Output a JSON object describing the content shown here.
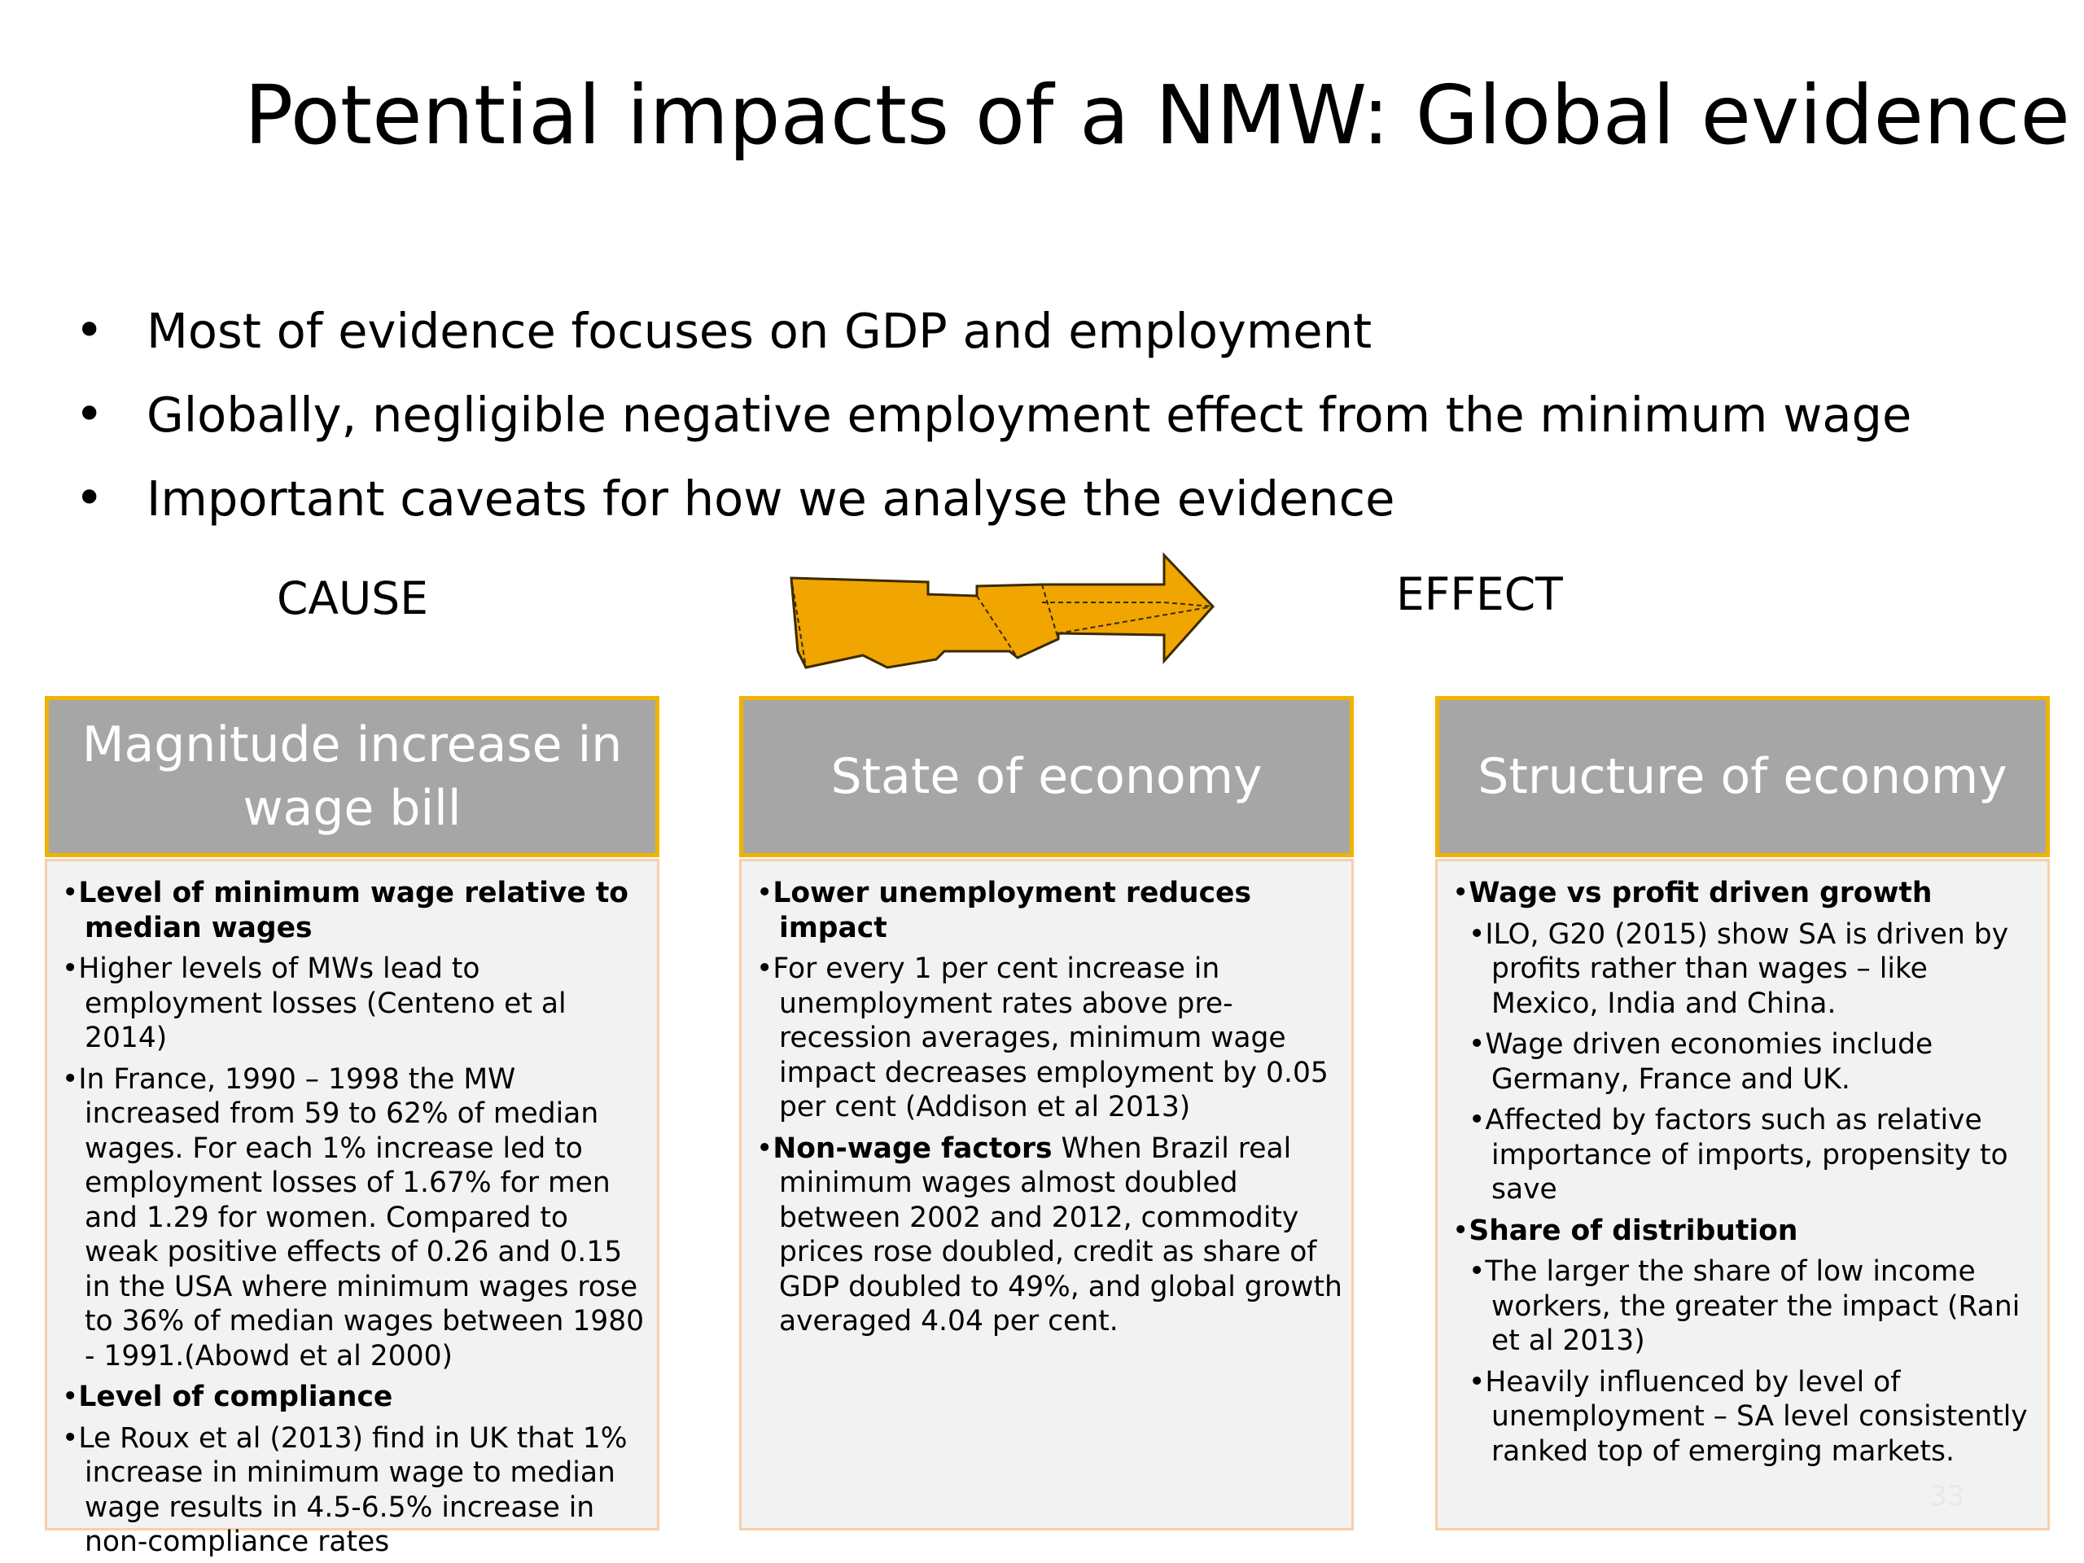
{
  "slide": {
    "title": "Potential impacts of a NMW: Global evidence",
    "bullets": [
      "Most of evidence focuses on GDP and employment",
      "Globally, negligible negative employment effect from the minimum wage",
      "Important caveats for how we analyse the evidence"
    ],
    "cause_label": "CAUSE",
    "effect_label": "EFFECT",
    "arrow_color": "#f0a500",
    "header_color": "#a6a6a6",
    "border_color": "#f2b300",
    "page_number": "33"
  },
  "columns": [
    {
      "heading": "Magnitude increase in wage bill",
      "items": [
        {
          "bold": "Level of minimum wage relative to median wages",
          "text": ""
        },
        {
          "bold": "",
          "text": "Higher levels of MWs lead to employment losses (Centeno et al 2014)"
        },
        {
          "bold": "",
          "text": "In France, 1990 – 1998 the MW increased from 59 to 62% of median wages. For each 1% increase led to employment losses of 1.67% for men and 1.29 for women. Compared to weak positive effects of 0.26 and 0.15 in the USA where  minimum wages rose to 36% of median wages between 1980 - 1991.(Abowd et al 2000)"
        },
        {
          "bold": "Level of compliance",
          "text": ""
        },
        {
          "bold": "",
          "text": "Le Roux et al (2013) find in UK that 1% increase in minimum wage to median wage results in 4.5-6.5% increase in non-compliance rates"
        }
      ]
    },
    {
      "heading": "State of economy",
      "items": [
        {
          "bold": "Lower unemployment reduces impact",
          "text": ""
        },
        {
          "bold": "",
          "text": "For every 1 per cent increase in unemployment rates above pre-recession averages, minimum wage impact decreases employment by 0.05 per cent  (Addison et al 2013)"
        },
        {
          "bold": "Non-wage factors",
          "text": " When Brazil real minimum wages almost doubled between 2002 and 2012, commodity prices rose doubled, credit as share of GDP doubled to 49%, and global growth averaged 4.04 per cent."
        }
      ]
    },
    {
      "heading": "Structure of economy",
      "items": [
        {
          "bold": "Wage vs profit driven growth",
          "text": "",
          "sub": false
        },
        {
          "bold": "",
          "text": "ILO, G20 (2015) show SA is driven by profits rather than wages – like Mexico, India  and China.",
          "sub": true
        },
        {
          "bold": "",
          "text": "Wage driven economies include Germany, France and UK.",
          "sub": true
        },
        {
          "bold": "",
          "text": "Affected by factors such as relative importance of imports, propensity to save",
          "sub": true
        },
        {
          "bold": "Share of distribution",
          "text": "",
          "sub": false
        },
        {
          "bold": "",
          "text": "The larger the share of low income workers, the greater the impact (Rani et al 2013)",
          "sub": true
        },
        {
          "bold": "",
          "text": "Heavily influenced by level of unemployment – SA level consistently ranked top of emerging markets.",
          "sub": true
        }
      ]
    }
  ]
}
